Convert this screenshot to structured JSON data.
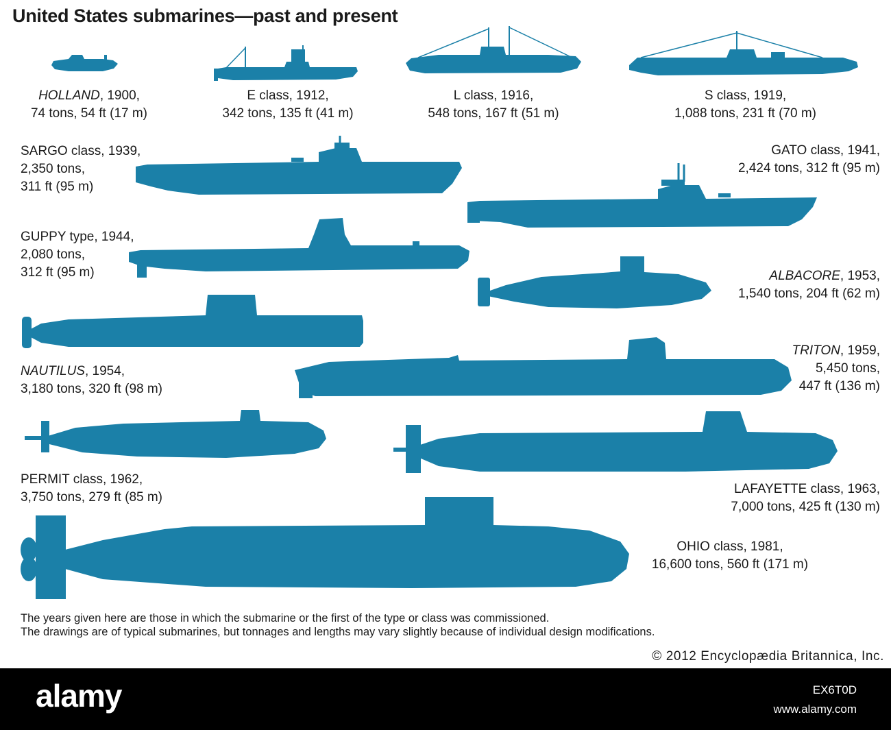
{
  "title": "United States submarines—past and present",
  "colors": {
    "submarine": "#1b80a8",
    "footer_bg": "#000000",
    "footer_text": "#ffffff"
  },
  "submarines": {
    "holland": {
      "name": "HOLLAND",
      "name_italic": true,
      "suffix": ", 1900,",
      "line2": "74 tons, 54 ft (17 m)"
    },
    "e_class": {
      "line1": "E class, 1912,",
      "line2": "342 tons, 135 ft (41 m)"
    },
    "l_class": {
      "line1": "L class, 1916,",
      "line2": "548 tons, 167 ft (51 m)"
    },
    "s_class": {
      "line1": "S class, 1919,",
      "line2": "1,088 tons, 231 ft (70 m)"
    },
    "sargo": {
      "line1": "SARGO class, 1939,",
      "line2": "2,350 tons,",
      "line3": "311 ft (95 m)"
    },
    "gato": {
      "line1": "GATO class, 1941,",
      "line2": "2,424 tons, 312 ft (95 m)"
    },
    "guppy": {
      "line1": "GUPPY type, 1944,",
      "line2": "2,080 tons,",
      "line3": "312 ft (95 m)"
    },
    "albacore": {
      "name": "ALBACORE",
      "name_italic": true,
      "suffix": ", 1953,",
      "line2": "1,540 tons, 204 ft (62 m)"
    },
    "nautilus": {
      "name": "NAUTILUS",
      "name_italic": true,
      "suffix": ", 1954,",
      "line2": "3,180 tons, 320 ft (98 m)"
    },
    "triton": {
      "name": "TRITON",
      "name_italic": true,
      "suffix": ", 1959,",
      "line2": "5,450 tons,",
      "line3": "447 ft (136 m)"
    },
    "permit": {
      "line1": "PERMIT class, 1962,",
      "line2": "3,750 tons, 279 ft (85 m)"
    },
    "lafayette": {
      "line1": "LAFAYETTE class, 1963,",
      "line2": "7,000 tons, 425 ft (130 m)"
    },
    "ohio": {
      "line1": "OHIO class, 1981,",
      "line2": "16,600 tons, 560 ft (171 m)"
    }
  },
  "notes": {
    "line1": "The years given here are those in which the submarine or the first of the type or class was commissioned.",
    "line2": "The drawings are of typical submarines, but tonnages and lengths may vary slightly because of individual design modifications."
  },
  "copyright": "© 2012 Encyclopædia Britannica, Inc.",
  "watermark": {
    "brand": "alamy",
    "stock_id": "EX6T0D",
    "site": "www.alamy.com"
  }
}
